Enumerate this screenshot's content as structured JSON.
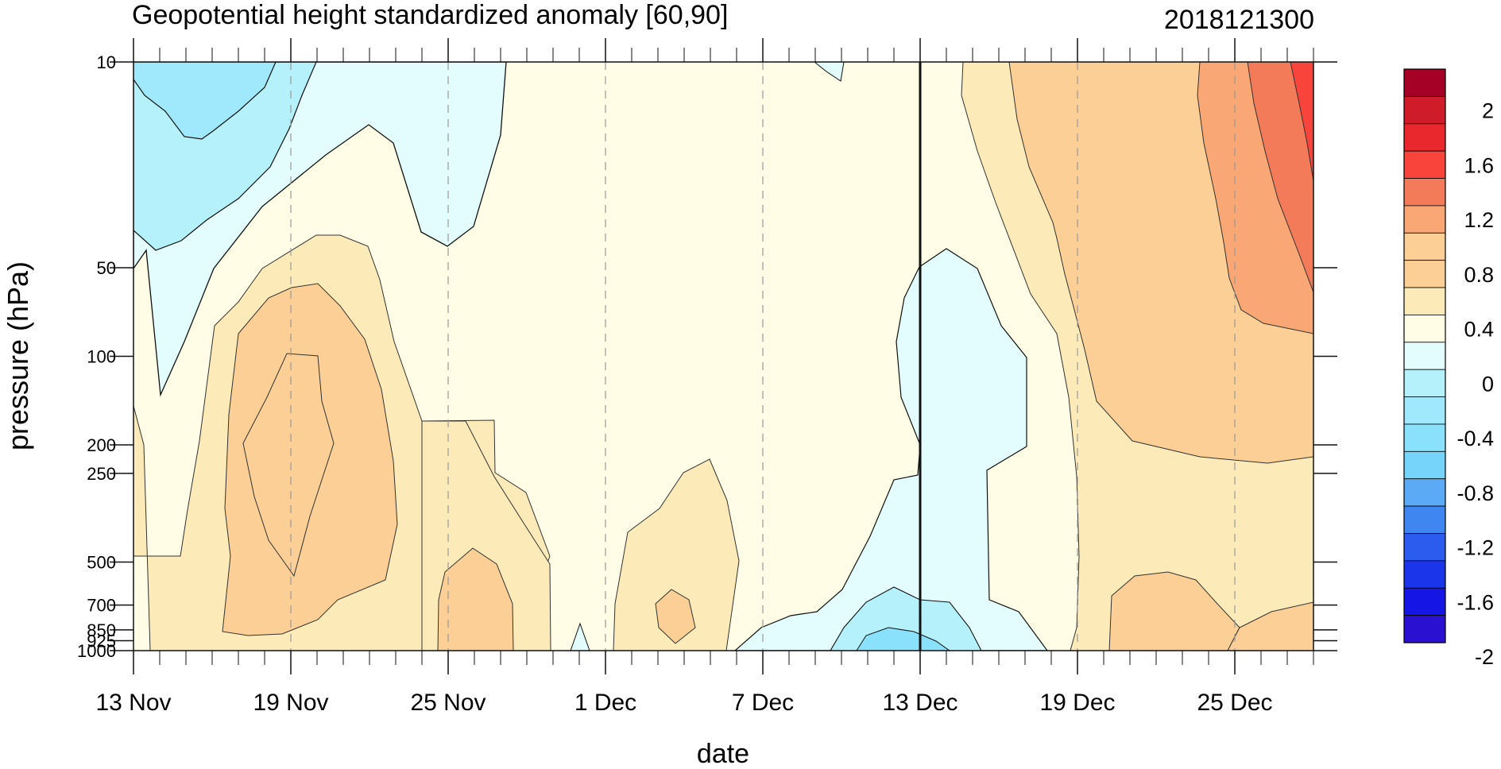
{
  "chart_data": {
    "type": "heatmap",
    "title": "Geopotential height standardized anomaly [60,90]",
    "run_label": "2018121300",
    "xlabel": "date",
    "ylabel": "pressure (hPa)",
    "x_axis": {
      "unit": "date",
      "range": [
        "2018-11-13",
        "2018-12-28"
      ],
      "ticks": [
        {
          "date": "2018-11-13",
          "label": "13 Nov"
        },
        {
          "date": "2018-11-19",
          "label": "19 Nov"
        },
        {
          "date": "2018-11-25",
          "label": "25 Nov"
        },
        {
          "date": "2018-12-01",
          "label": "1 Dec"
        },
        {
          "date": "2018-12-07",
          "label": "7 Dec"
        },
        {
          "date": "2018-12-13",
          "label": "13 Dec"
        },
        {
          "date": "2018-12-19",
          "label": "19 Dec"
        },
        {
          "date": "2018-12-25",
          "label": "25 Dec"
        }
      ],
      "reference_line_date": "2018-12-13"
    },
    "y_axis": {
      "unit": "hPa",
      "scale": "log",
      "inverted": true,
      "range": [
        1000,
        10
      ],
      "ticks": [
        {
          "value": 10,
          "label": "10"
        },
        {
          "value": 50,
          "label": "50"
        },
        {
          "value": 100,
          "label": "100"
        },
        {
          "value": 200,
          "label": "200"
        },
        {
          "value": 250,
          "label": "250"
        },
        {
          "value": 500,
          "label": "500"
        },
        {
          "value": 700,
          "label": "700"
        },
        {
          "value": 850,
          "label": "850"
        },
        {
          "value": 925,
          "label": "925"
        },
        {
          "value": 1000,
          "label": "1000"
        }
      ]
    },
    "grid": "dashed vertical lines at labeled dates",
    "colorbar": {
      "placement": "right",
      "labels": [
        "2",
        "1.6",
        "1.2",
        "0.8",
        "0.4",
        "0",
        "-0.4",
        "-0.8",
        "-1.2",
        "-1.6",
        "-2"
      ],
      "colors": [
        "#a50026",
        "#d01c2a",
        "#e8282c",
        "#f8443a",
        "#f47b5a",
        "#f9a875",
        "#fbcf95",
        "#fbcf95",
        "#fcebb8",
        "#fffde6",
        "#e3fcfd",
        "#b5f1fb",
        "#a0e8fc",
        "#8ae1fb",
        "#76d3fa",
        "#5aaaf5",
        "#3f86f0",
        "#2b5ced",
        "#1b35eb",
        "#1516e5",
        "#2a10d0"
      ]
    },
    "regions": [
      {
        "level": "0 to 0.4",
        "color": "#fffde6",
        "description": "background positive anomaly field"
      },
      {
        "level": "-0.4 to 0",
        "color": "#e3fcfd",
        "description": "negative anomaly aloft mid-Nov to late Nov; column around 13 Dec"
      },
      {
        "level": "-0.8 to -0.4",
        "color": "#a0e8fc",
        "description": "stratosphere 13-17 Nov"
      },
      {
        "level": "0.4 to 0.8",
        "color": "#fcebb8",
        "description": "tropospheric positive anomalies"
      },
      {
        "level": "0.8 to 1.2",
        "color": "#fbcf95",
        "description": "core 17-23 Nov; after 19 Dec"
      },
      {
        "level": "1.2 to 1.6",
        "color": "#f9a875",
        "description": "stratosphere after 23 Dec"
      },
      {
        "level": "1.6 to 2",
        "color": "#f47b5a",
        "description": "stratosphere late Dec"
      },
      {
        "level": "> 2",
        "color": "#f8443a",
        "description": "upper stratosphere 27-28 Dec"
      }
    ]
  }
}
